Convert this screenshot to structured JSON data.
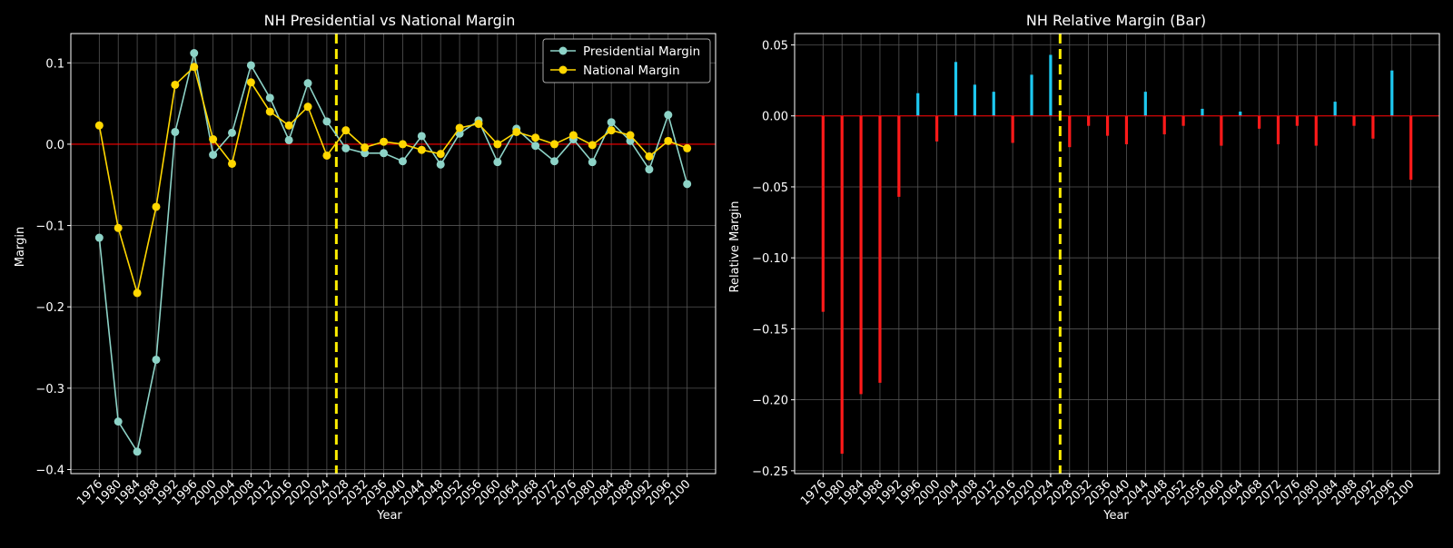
{
  "colors": {
    "background": "#000000",
    "axis": "#ffffff",
    "grid": "#555555",
    "presidential": "#8dd3c7",
    "national": "#ffd700",
    "zero_line": "#ff0000",
    "dem_bar": "#1ec8f0",
    "rep_bar": "#ff1a1a",
    "divider": "#ffee00"
  },
  "chart_data": [
    {
      "type": "line",
      "title": "NH Presidential vs National Margin",
      "xlabel": "Year",
      "ylabel": "Margin",
      "x": [
        1976,
        1980,
        1984,
        1988,
        1992,
        1996,
        2000,
        2004,
        2008,
        2012,
        2016,
        2020,
        2024,
        2028,
        2032,
        2036,
        2040,
        2044,
        2048,
        2052,
        2056,
        2060,
        2064,
        2068,
        2072,
        2076,
        2080,
        2084,
        2088,
        2092,
        2096,
        2100
      ],
      "xlim": [
        1970,
        2106
      ],
      "ylim": [
        -0.405,
        0.136
      ],
      "yticks": [
        -0.4,
        -0.3,
        -0.2,
        -0.1,
        0.0,
        0.1
      ],
      "ytick_labels": [
        "−0.4",
        "−0.3",
        "−0.2",
        "−0.1",
        "0.0",
        "0.1"
      ],
      "xtick_labels": [
        "1976",
        "1980",
        "1984",
        "1988",
        "1992",
        "1996",
        "2000",
        "2004",
        "2008",
        "2012",
        "2016",
        "2020",
        "2024",
        "2028",
        "2032",
        "2036",
        "2040",
        "2044",
        "2048",
        "2052",
        "2056",
        "2060",
        "2064",
        "2068",
        "2072",
        "2076",
        "2080",
        "2084",
        "2088",
        "2092",
        "2096",
        "2100"
      ],
      "divider_x": 2026,
      "zero_line": 0,
      "legend": "top-right",
      "series": [
        {
          "name": "Presidential Margin",
          "color_key": "presidential",
          "values": [
            -0.115,
            -0.341,
            -0.378,
            -0.265,
            0.015,
            0.112,
            -0.013,
            0.014,
            0.097,
            0.057,
            0.005,
            0.075,
            0.028,
            -0.005,
            -0.011,
            -0.011,
            -0.021,
            0.01,
            -0.025,
            0.013,
            0.029,
            -0.022,
            0.019,
            -0.002,
            -0.021,
            0.006,
            -0.022,
            0.027,
            0.004,
            -0.031,
            0.036,
            -0.049
          ]
        },
        {
          "name": "National Margin",
          "color_key": "national",
          "values": [
            0.023,
            -0.103,
            -0.183,
            -0.077,
            0.073,
            0.095,
            0.006,
            -0.024,
            0.076,
            0.04,
            0.023,
            0.046,
            -0.014,
            0.017,
            -0.004,
            0.003,
            0.0,
            -0.007,
            -0.012,
            0.02,
            0.025,
            0.0,
            0.015,
            0.008,
            0.0,
            0.011,
            -0.001,
            0.017,
            0.011,
            -0.015,
            0.004,
            -0.005
          ]
        }
      ]
    },
    {
      "type": "bar",
      "title": "NH Relative Margin (Bar)",
      "xlabel": "Year",
      "ylabel": "Relative Margin",
      "x": [
        1976,
        1980,
        1984,
        1988,
        1992,
        1996,
        2000,
        2004,
        2008,
        2012,
        2016,
        2020,
        2024,
        2028,
        2032,
        2036,
        2040,
        2044,
        2048,
        2052,
        2056,
        2060,
        2064,
        2068,
        2072,
        2076,
        2080,
        2084,
        2088,
        2092,
        2096,
        2100
      ],
      "xlim": [
        1970,
        2106
      ],
      "ylim": [
        -0.252,
        0.058
      ],
      "yticks": [
        -0.25,
        -0.2,
        -0.15,
        -0.1,
        -0.05,
        0.0,
        0.05
      ],
      "ytick_labels": [
        "−0.25",
        "−0.20",
        "−0.15",
        "−0.10",
        "−0.05",
        "0.00",
        "0.05"
      ],
      "xtick_labels": [
        "1976",
        "1980",
        "1984",
        "1988",
        "1992",
        "1996",
        "2000",
        "2004",
        "2008",
        "2012",
        "2016",
        "2020",
        "2024",
        "2028",
        "2032",
        "2036",
        "2040",
        "2044",
        "2048",
        "2052",
        "2056",
        "2060",
        "2064",
        "2068",
        "2072",
        "2076",
        "2080",
        "2084",
        "2088",
        "2092",
        "2096",
        "2100"
      ],
      "divider_x": 2026,
      "zero_line": 0,
      "values": [
        -0.138,
        -0.238,
        -0.196,
        -0.188,
        -0.057,
        0.016,
        -0.018,
        0.038,
        0.022,
        0.017,
        -0.019,
        0.029,
        0.043,
        -0.022,
        -0.007,
        -0.014,
        -0.02,
        0.017,
        -0.013,
        -0.007,
        0.005,
        -0.021,
        0.003,
        -0.009,
        -0.02,
        -0.007,
        -0.021,
        0.01,
        -0.007,
        -0.016,
        0.032,
        -0.045
      ]
    }
  ]
}
